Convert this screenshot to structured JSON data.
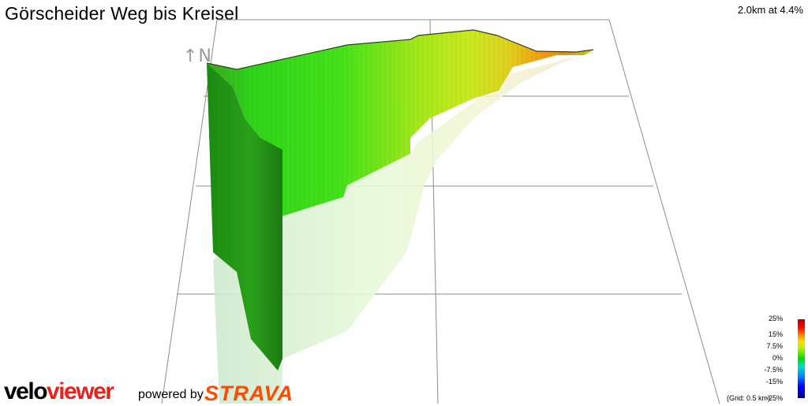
{
  "header": {
    "title": "Görscheider Weg bis Kreisel",
    "stat": "2.0km at 4.4%"
  },
  "compass": {
    "label": "↑N"
  },
  "legend": {
    "ticks": [
      "25%",
      "15%",
      "7.5%",
      "0%",
      "-7.5%",
      "-15%",
      "-25%"
    ],
    "grid_note": "(Grid: 0.5 km)"
  },
  "branding": {
    "logo_velo": "velo",
    "logo_viewer": "viewer",
    "powered_by": "powered by",
    "strava": "STRAVA"
  },
  "colors": {
    "accent_red": "#e8221c",
    "strava_orange": "#fc4c02",
    "grid": "#8c8c8c"
  }
}
